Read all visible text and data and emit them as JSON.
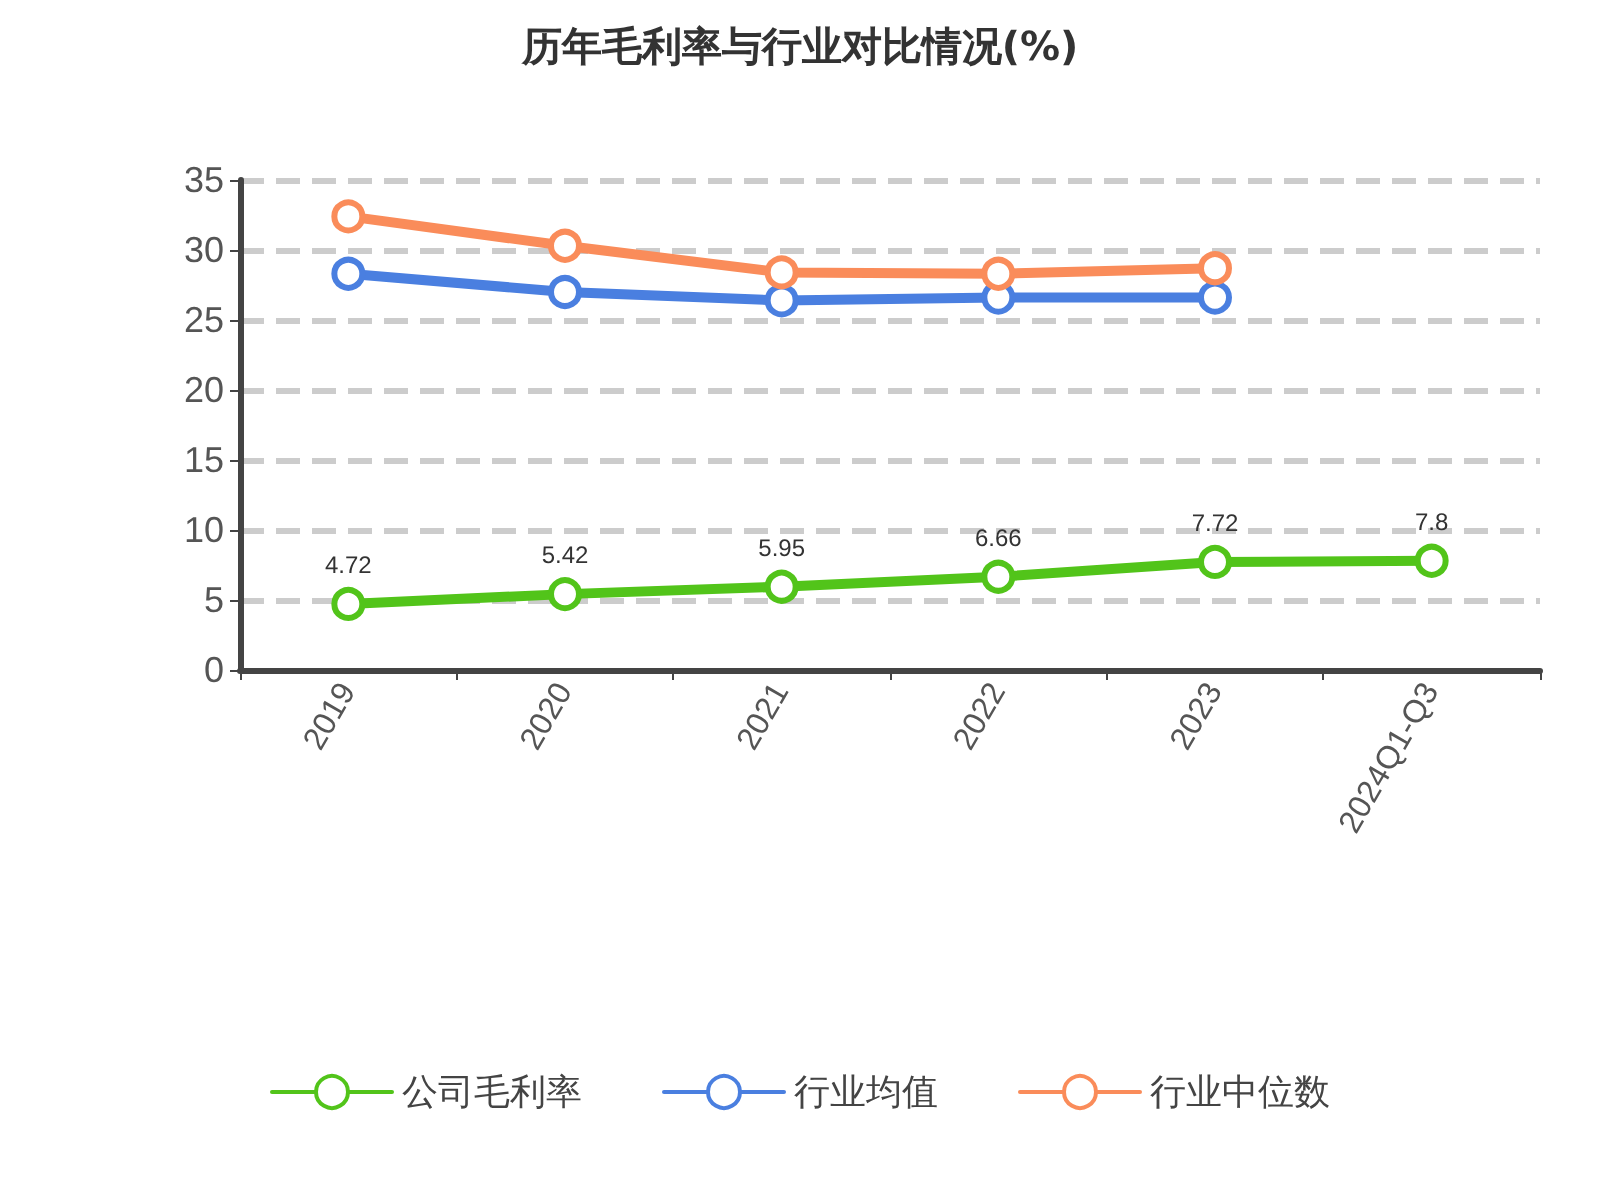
{
  "chart_data": {
    "type": "line",
    "title": "历年毛利率与行业对比情况(%)",
    "categories": [
      "2019",
      "2020",
      "2021",
      "2022",
      "2023",
      "2024Q1-Q3"
    ],
    "series": [
      {
        "name": "公司毛利率",
        "color": "#52c41a",
        "values": [
          4.72,
          5.42,
          5.95,
          6.66,
          7.72,
          7.8
        ],
        "data_labels": true
      },
      {
        "name": "行业均值",
        "color": "#4a7fe0",
        "values": [
          28.3,
          27.0,
          26.4,
          26.6,
          26.6,
          null
        ]
      },
      {
        "name": "行业中位数",
        "color": "#fa8c5a",
        "values": [
          32.4,
          30.3,
          28.4,
          28.3,
          28.7,
          null
        ]
      }
    ],
    "ylim": [
      0,
      35
    ],
    "yticks": [
      0,
      5,
      10,
      15,
      20,
      25,
      30,
      35
    ],
    "grid": "y",
    "legend": "bottom",
    "marker": "circle",
    "line_style": "solid"
  }
}
